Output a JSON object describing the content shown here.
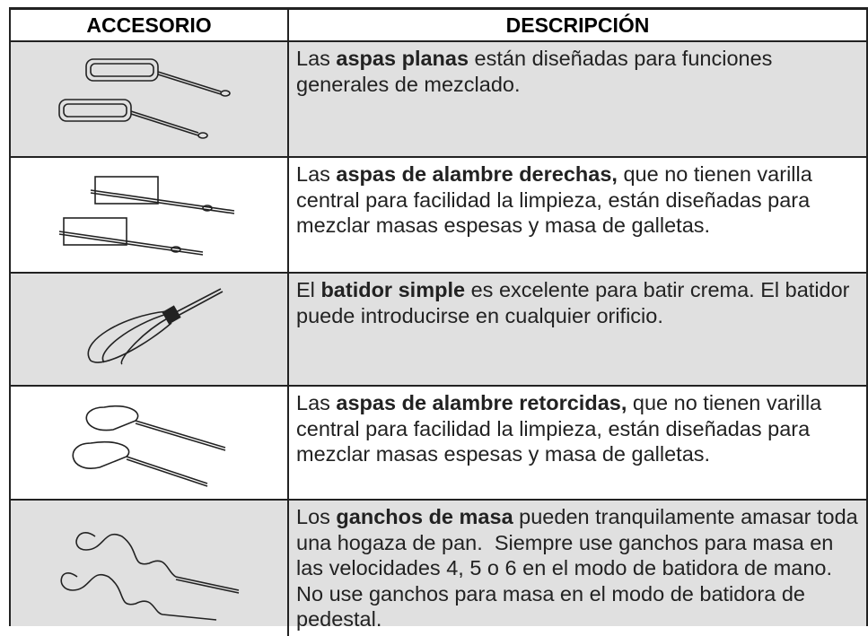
{
  "table": {
    "header": [
      "ACCESORIO",
      "DESCRIPCIÓN"
    ],
    "rows": [
      {
        "description": [
          {
            "text": "Las "
          },
          {
            "text": "aspas planas",
            "bold": true
          },
          {
            "text": " están diseñadas para funciones generales de mezclado."
          }
        ]
      },
      {
        "description": [
          {
            "text": "Las "
          },
          {
            "text": "aspas de alambre derechas,",
            "bold": true
          },
          {
            "text": " que no tienen varilla central para facilidad la limpieza, están diseñadas para mezclar masas espesas y masa de galletas."
          }
        ]
      },
      {
        "description": [
          {
            "text": "El "
          },
          {
            "text": "batidor simple",
            "bold": true
          },
          {
            "text": " es excelente para batir crema. El batidor puede introducirse en cualquier orificio."
          }
        ]
      },
      {
        "description": [
          {
            "text": "Las "
          },
          {
            "text": "aspas de alambre retorcidas,",
            "bold": true
          },
          {
            "text": " que no tienen varilla central para facilidad la limpieza, están diseñadas para mezclar masas espesas y masa de galletas."
          }
        ]
      },
      {
        "description": [
          {
            "text": "Los "
          },
          {
            "text": "ganchos de masa",
            "bold": true
          },
          {
            "text": " pueden tranquilamente amasar toda una hogaza de pan.  Siempre use ganchos para masa en las velocidades 4, 5 o 6 en el modo de batidora de mano. No use ganchos para masa en el modo de batidora de pedestal."
          }
        ]
      }
    ]
  }
}
